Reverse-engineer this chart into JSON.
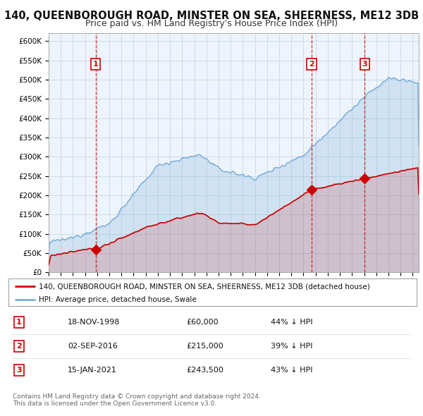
{
  "title": "140, QUEENBOROUGH ROAD, MINSTER ON SEA, SHEERNESS, ME12 3DB",
  "subtitle": "Price paid vs. HM Land Registry's House Price Index (HPI)",
  "ylim": [
    0,
    620000
  ],
  "yticks": [
    0,
    50000,
    100000,
    150000,
    200000,
    250000,
    300000,
    350000,
    400000,
    450000,
    500000,
    550000,
    600000
  ],
  "xlim_start": 1995.0,
  "xlim_end": 2025.5,
  "sales": [
    {
      "date_dec": 1998.88,
      "price": 60000,
      "label": "1"
    },
    {
      "date_dec": 2016.67,
      "price": 215000,
      "label": "2"
    },
    {
      "date_dec": 2021.04,
      "price": 243500,
      "label": "3"
    }
  ],
  "line_color_sales": "#cc0000",
  "line_color_hpi": "#7aaed6",
  "hpi_fill_color": "#ddeeff",
  "legend_label_sales": "140, QUEENBOROUGH ROAD, MINSTER ON SEA, SHEERNESS, ME12 3DB (detached house)",
  "legend_label_hpi": "HPI: Average price, detached house, Swale",
  "table_rows": [
    [
      "1",
      "18-NOV-1998",
      "£60,000",
      "44% ↓ HPI"
    ],
    [
      "2",
      "02-SEP-2016",
      "£215,000",
      "39% ↓ HPI"
    ],
    [
      "3",
      "15-JAN-2021",
      "£243,500",
      "43% ↓ HPI"
    ]
  ],
  "footer": "Contains HM Land Registry data © Crown copyright and database right 2024.\nThis data is licensed under the Open Government Licence v3.0.",
  "bg_color": "#eef4fb",
  "grid_color": "#c8d8e8",
  "title_fontsize": 10.5,
  "subtitle_fontsize": 9
}
